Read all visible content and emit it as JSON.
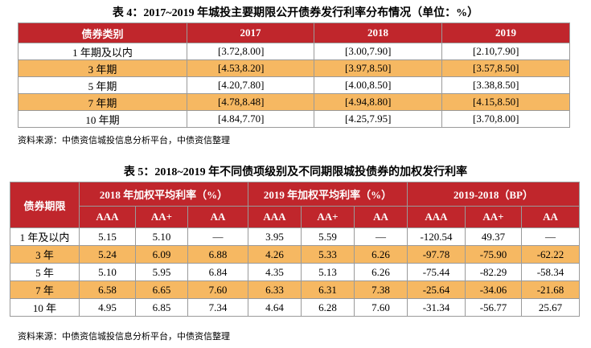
{
  "table4": {
    "title": "表 4：2017~2019 年城投主要期限公开债券发行利率分布情况（单位：%）",
    "headers": [
      "债券类别",
      "2017",
      "2018",
      "2019"
    ],
    "rows": [
      [
        "1 年期及以内",
        "[3.72,8.00]",
        "[3.00,7.90]",
        "[2.10,7.90]"
      ],
      [
        "3 年期",
        "[4.53,8.20]",
        "[3.97,8.50]",
        "[3.57,8.50]"
      ],
      [
        "5 年期",
        "[4.20,7.80]",
        "[4.00,8.50]",
        "[3.38,8.50]"
      ],
      [
        "7 年期",
        "[4.78,8.48]",
        "[4.94,8.80]",
        "[4.15,8.50]"
      ],
      [
        "10 年期",
        "[4.84,7.70]",
        "[4.25,7.95]",
        "[3.70,8.00]"
      ]
    ],
    "source": "资料来源：中债资信城投信息分析平台，中债资信整理"
  },
  "table5": {
    "title": "表 5：2018~2019 年不同债项级别及不同期限城投债券的加权发行利率",
    "corner": "债券期限",
    "groups": [
      "2018 年加权平均利率（%）",
      "2019 年加权平均利率（%）",
      "2019-2018（BP）"
    ],
    "subheaders": [
      "AAA",
      "AA+",
      "AA",
      "AAA",
      "AA+",
      "AA",
      "AAA",
      "AA+",
      "AA"
    ],
    "rows": [
      [
        "1 年及以内",
        "5.15",
        "5.10",
        "—",
        "3.95",
        "5.59",
        "—",
        "-120.54",
        "49.37",
        "—"
      ],
      [
        "3 年",
        "5.24",
        "6.09",
        "6.88",
        "4.26",
        "5.33",
        "6.26",
        "-97.78",
        "-75.90",
        "-62.22"
      ],
      [
        "5 年",
        "5.10",
        "5.95",
        "6.84",
        "4.35",
        "5.13",
        "6.26",
        "-75.44",
        "-82.29",
        "-58.34"
      ],
      [
        "7 年",
        "6.58",
        "6.65",
        "7.60",
        "6.33",
        "6.31",
        "7.38",
        "-25.64",
        "-34.06",
        "-21.68"
      ],
      [
        "10 年",
        "4.95",
        "6.85",
        "7.34",
        "4.64",
        "6.28",
        "7.60",
        "-31.34",
        "-56.77",
        "25.67"
      ]
    ],
    "source": "资料来源：中债资信城投信息分析平台，中债资信整理"
  }
}
